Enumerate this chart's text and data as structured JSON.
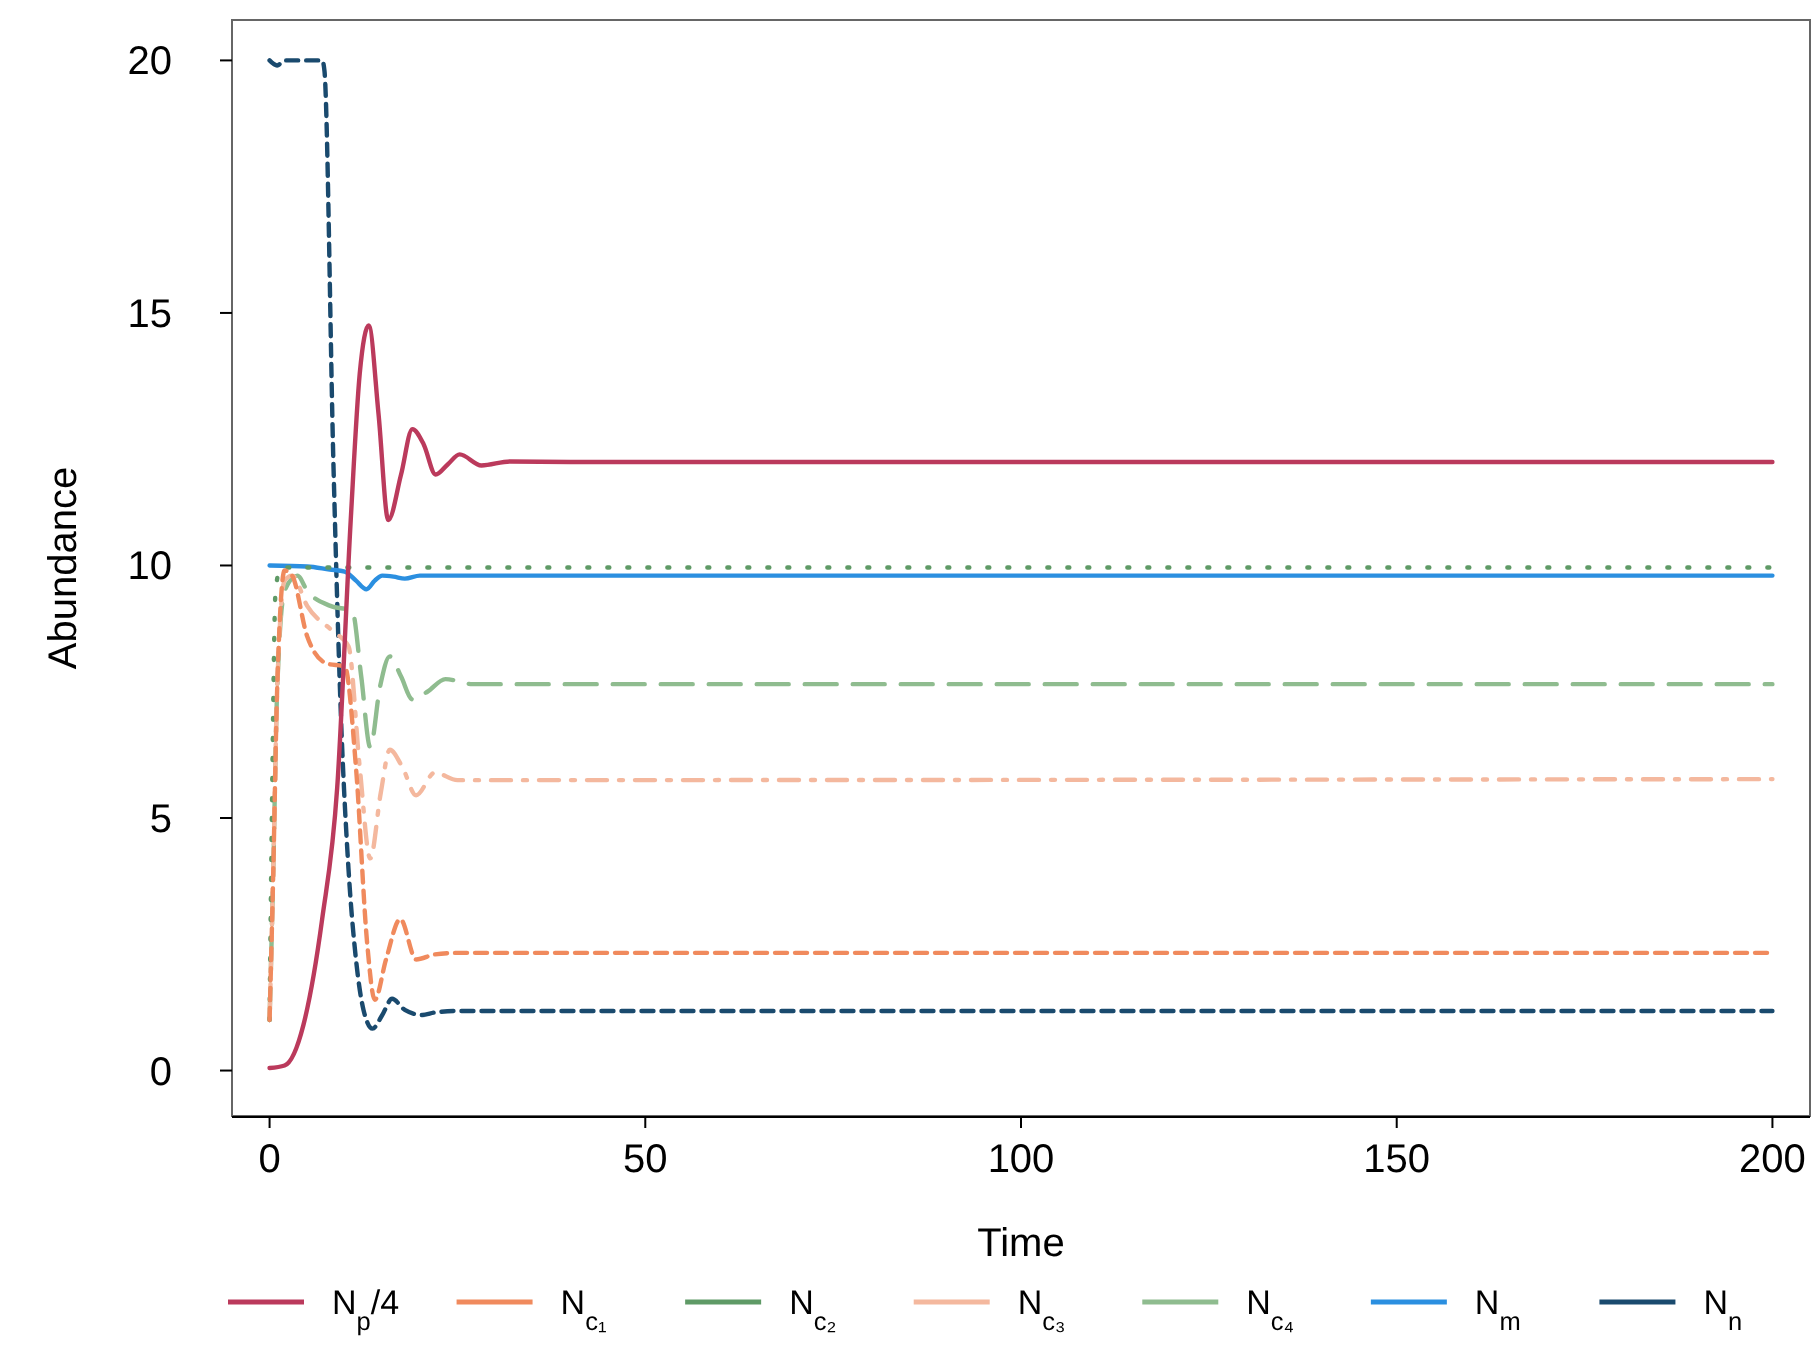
{
  "chart_data": {
    "type": "line",
    "xlabel": "Time",
    "ylabel": "Abundance",
    "xlim": [
      -5,
      205
    ],
    "ylim": [
      -0.9,
      20.8
    ],
    "xticks": [
      0,
      50,
      100,
      150,
      200
    ],
    "yticks": [
      0,
      5,
      10,
      15,
      20
    ],
    "grid": false,
    "legend": "bottom",
    "series": [
      {
        "name": "N$_{p}$/4",
        "color": "#bb3a5c",
        "line_style": "solid",
        "x": [
          0,
          2,
          4.5,
          7,
          9,
          10.8,
          12,
          13.2,
          14.5,
          15.8,
          17.5,
          19,
          20.5,
          22.1,
          23.7,
          25.3,
          28.2,
          32,
          40,
          200
        ],
        "values": [
          0.05,
          0.1,
          0.9,
          3,
          5.6,
          10.9,
          13.8,
          14.75,
          13,
          10.9,
          11.8,
          12.7,
          12.4,
          11.8,
          12,
          12.2,
          11.98,
          12.06,
          12.05,
          12.05
        ]
      },
      {
        "name": "N$_{c₁}$",
        "color": "#f08a5d",
        "line_style": "dashed",
        "x": [
          0,
          0.5,
          1,
          2,
          3,
          5,
          7.6,
          10,
          11.5,
          13,
          14,
          15.5,
          17.4,
          19.5,
          22,
          25,
          200
        ],
        "values": [
          1,
          4,
          7.5,
          9.9,
          9.8,
          8.6,
          8.06,
          8,
          6,
          2.5,
          1.4,
          2.2,
          3,
          2.2,
          2.3,
          2.33,
          2.33
        ]
      },
      {
        "name": "N$_{c₂}$",
        "color": "#5f9a66",
        "line_style": "dotted",
        "x": [
          0,
          0.3,
          0.8,
          1.5,
          200
        ],
        "values": [
          1,
          5,
          9.5,
          9.96,
          9.96
        ]
      },
      {
        "name": "N$_{c₃}$",
        "color": "#f4b89e",
        "line_style": "dashdot",
        "x": [
          0,
          0.5,
          1,
          2,
          3,
          5,
          8.4,
          10.5,
          12,
          13.4,
          14.8,
          16,
          17.7,
          19.5,
          22,
          25,
          200
        ],
        "values": [
          1,
          4,
          7.5,
          9.7,
          9.8,
          9.2,
          8.7,
          8.4,
          6,
          4.2,
          5.5,
          6.35,
          6,
          5.45,
          5.9,
          5.75,
          5.77
        ]
      },
      {
        "name": "N$_{c₄}$",
        "color": "#8fbc8f",
        "line_style": "longdash",
        "x": [
          0,
          0.5,
          1,
          2,
          3.7,
          5,
          8.1,
          11,
          12.2,
          13.4,
          14.7,
          16,
          17.5,
          19,
          21,
          23.4,
          27,
          200
        ],
        "values": [
          1,
          4,
          7.5,
          9.5,
          9.8,
          9.5,
          9.2,
          9.1,
          7.8,
          6.4,
          7.6,
          8.2,
          7.8,
          7.35,
          7.5,
          7.75,
          7.65,
          7.65
        ]
      },
      {
        "name": "N$_{m}$",
        "color": "#2b8fe0",
        "line_style": "solid",
        "x": [
          0,
          5,
          8,
          10,
          11.5,
          12.9,
          14,
          15,
          16.5,
          18,
          20,
          25,
          200
        ],
        "values": [
          10,
          9.98,
          9.92,
          9.88,
          9.7,
          9.53,
          9.7,
          9.8,
          9.78,
          9.74,
          9.8,
          9.8,
          9.8
        ]
      },
      {
        "name": "N$_{n}$",
        "color": "#1a4a6e",
        "line_style": "dashed",
        "x": [
          0,
          1,
          2,
          7,
          7.3,
          8.5,
          9.5,
          10.5,
          11.5,
          12.5,
          13.7,
          15,
          16.3,
          18,
          20.3,
          22,
          25,
          200
        ],
        "values": [
          20,
          19.9,
          20,
          20,
          19.8,
          12,
          7,
          4,
          2.2,
          1.2,
          0.83,
          1.1,
          1.42,
          1.2,
          1.1,
          1.15,
          1.18,
          1.18
        ]
      }
    ]
  }
}
